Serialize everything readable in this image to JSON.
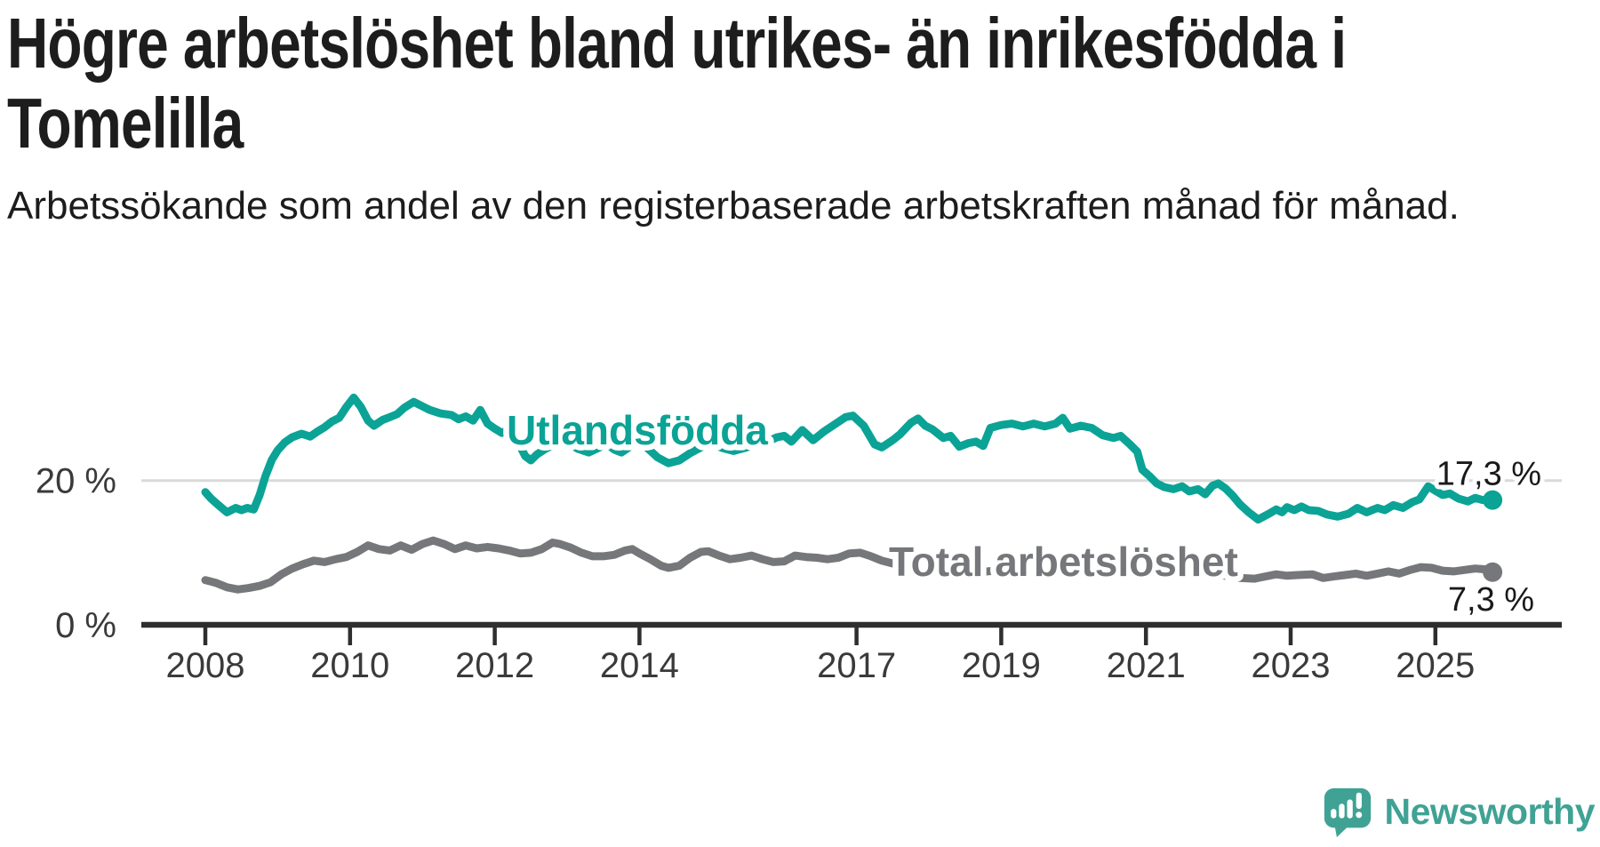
{
  "header": {
    "title_line1": "Högre arbetslöshet bland utrikes- än inrikesfödda i",
    "title_line2": "Tomelilla",
    "subtitle": "Arbetssökande som andel av den registerbaserade arbetskraften månad för månad."
  },
  "branding": {
    "logo_text": "Newsworthy",
    "logo_color": "#3fa294"
  },
  "chart_data": {
    "type": "line",
    "title": "Högre arbetslöshet bland utrikes- än inrikesfödda i Tomelilla",
    "subtitle": "Arbetssökande som andel av den registerbaserade arbetskraften månad för månad.",
    "unit": "%",
    "x_domain": [
      2008,
      2025.83
    ],
    "y_domain": [
      0,
      40
    ],
    "grid": "single horizontal gridline at 20 %",
    "legend_position": "inline-labels-on-lines",
    "background": "#ffffff",
    "gridline_color": "#d9d9d9",
    "axis_color": "#2e2e2e",
    "tick_label_color": "#3a3a3a",
    "y_ticks": [
      {
        "value": 0,
        "label": "0 %"
      },
      {
        "value": 20,
        "label": "20 %"
      }
    ],
    "x_ticks": [
      {
        "value": 2008,
        "label": "2008"
      },
      {
        "value": 2010,
        "label": "2010"
      },
      {
        "value": 2012,
        "label": "2012"
      },
      {
        "value": 2014,
        "label": "2014"
      },
      {
        "value": 2017,
        "label": "2017"
      },
      {
        "value": 2019,
        "label": "2019"
      },
      {
        "value": 2021,
        "label": "2021"
      },
      {
        "value": 2023,
        "label": "2023"
      },
      {
        "value": 2025,
        "label": "2025"
      }
    ],
    "series": [
      {
        "name": "Utlandsfödda",
        "color": "#0ba396",
        "end_label": "17,3 %",
        "end_value": 17.3,
        "inline_label": {
          "text": "Utlandsfödda",
          "x_year": 2013.97,
          "y_value": 27.1
        },
        "points": [
          [
            2008.0,
            18.4
          ],
          [
            2008.08,
            17.5
          ],
          [
            2008.17,
            16.7
          ],
          [
            2008.3,
            15.6
          ],
          [
            2008.42,
            16.2
          ],
          [
            2008.5,
            15.9
          ],
          [
            2008.58,
            16.2
          ],
          [
            2008.67,
            16.0
          ],
          [
            2008.75,
            18.0
          ],
          [
            2008.83,
            20.6
          ],
          [
            2008.92,
            22.9
          ],
          [
            2009.0,
            24.2
          ],
          [
            2009.1,
            25.3
          ],
          [
            2009.2,
            26.0
          ],
          [
            2009.33,
            26.5
          ],
          [
            2009.45,
            26.1
          ],
          [
            2009.55,
            26.8
          ],
          [
            2009.65,
            27.4
          ],
          [
            2009.75,
            28.2
          ],
          [
            2009.85,
            28.7
          ],
          [
            2009.95,
            30.2
          ],
          [
            2010.05,
            31.5
          ],
          [
            2010.15,
            30.2
          ],
          [
            2010.25,
            28.3
          ],
          [
            2010.33,
            27.6
          ],
          [
            2010.45,
            28.4
          ],
          [
            2010.55,
            28.8
          ],
          [
            2010.65,
            29.2
          ],
          [
            2010.75,
            30.1
          ],
          [
            2010.88,
            30.9
          ],
          [
            2011.0,
            30.3
          ],
          [
            2011.1,
            29.8
          ],
          [
            2011.25,
            29.3
          ],
          [
            2011.4,
            29.1
          ],
          [
            2011.5,
            28.5
          ],
          [
            2011.6,
            28.9
          ],
          [
            2011.7,
            28.3
          ],
          [
            2011.8,
            29.8
          ],
          [
            2011.9,
            27.9
          ],
          [
            2012.0,
            27.2
          ],
          [
            2012.1,
            26.6
          ],
          [
            2012.2,
            27.1
          ],
          [
            2012.3,
            25.8
          ],
          [
            2012.42,
            23.4
          ],
          [
            2012.5,
            22.8
          ],
          [
            2012.58,
            23.6
          ],
          [
            2012.7,
            24.4
          ],
          [
            2012.83,
            25.0
          ],
          [
            2012.95,
            25.5
          ],
          [
            2013.05,
            25.0
          ],
          [
            2013.15,
            24.4
          ],
          [
            2013.3,
            23.9
          ],
          [
            2013.45,
            24.6
          ],
          [
            2013.55,
            25.1
          ],
          [
            2013.65,
            24.3
          ],
          [
            2013.75,
            23.9
          ],
          [
            2013.9,
            24.9
          ],
          [
            2014.0,
            25.4
          ],
          [
            2014.1,
            24.6
          ],
          [
            2014.25,
            23.2
          ],
          [
            2014.4,
            22.4
          ],
          [
            2014.55,
            22.8
          ],
          [
            2014.7,
            23.8
          ],
          [
            2014.85,
            24.6
          ],
          [
            2015.0,
            25.1
          ],
          [
            2015.15,
            24.5
          ],
          [
            2015.3,
            24.1
          ],
          [
            2015.45,
            24.5
          ],
          [
            2015.6,
            25.0
          ],
          [
            2015.75,
            25.3
          ],
          [
            2015.9,
            26.0
          ],
          [
            2016.0,
            26.2
          ],
          [
            2016.1,
            25.4
          ],
          [
            2016.25,
            27.0
          ],
          [
            2016.4,
            25.6
          ],
          [
            2016.55,
            26.8
          ],
          [
            2016.7,
            27.8
          ],
          [
            2016.85,
            28.8
          ],
          [
            2016.95,
            29.0
          ],
          [
            2017.1,
            27.6
          ],
          [
            2017.25,
            25.0
          ],
          [
            2017.35,
            24.6
          ],
          [
            2017.5,
            25.6
          ],
          [
            2017.6,
            26.4
          ],
          [
            2017.75,
            28.0
          ],
          [
            2017.85,
            28.6
          ],
          [
            2017.95,
            27.6
          ],
          [
            2018.05,
            27.1
          ],
          [
            2018.2,
            25.9
          ],
          [
            2018.3,
            26.2
          ],
          [
            2018.42,
            24.7
          ],
          [
            2018.55,
            25.2
          ],
          [
            2018.65,
            25.4
          ],
          [
            2018.75,
            24.8
          ],
          [
            2018.85,
            27.3
          ],
          [
            2019.0,
            27.7
          ],
          [
            2019.15,
            27.9
          ],
          [
            2019.3,
            27.5
          ],
          [
            2019.45,
            27.9
          ],
          [
            2019.6,
            27.5
          ],
          [
            2019.75,
            27.9
          ],
          [
            2019.85,
            28.7
          ],
          [
            2019.95,
            27.2
          ],
          [
            2020.1,
            27.6
          ],
          [
            2020.25,
            27.3
          ],
          [
            2020.4,
            26.3
          ],
          [
            2020.55,
            25.9
          ],
          [
            2020.65,
            26.2
          ],
          [
            2020.78,
            25.0
          ],
          [
            2020.88,
            24.0
          ],
          [
            2020.95,
            21.5
          ],
          [
            2021.05,
            20.6
          ],
          [
            2021.15,
            19.6
          ],
          [
            2021.25,
            19.1
          ],
          [
            2021.38,
            18.8
          ],
          [
            2021.5,
            19.2
          ],
          [
            2021.6,
            18.5
          ],
          [
            2021.72,
            18.8
          ],
          [
            2021.82,
            18.1
          ],
          [
            2021.92,
            19.3
          ],
          [
            2022.0,
            19.6
          ],
          [
            2022.1,
            18.9
          ],
          [
            2022.2,
            17.9
          ],
          [
            2022.3,
            16.7
          ],
          [
            2022.42,
            15.6
          ],
          [
            2022.55,
            14.6
          ],
          [
            2022.7,
            15.4
          ],
          [
            2022.8,
            16.0
          ],
          [
            2022.88,
            15.6
          ],
          [
            2022.95,
            16.3
          ],
          [
            2023.05,
            15.9
          ],
          [
            2023.15,
            16.4
          ],
          [
            2023.25,
            15.9
          ],
          [
            2023.38,
            15.8
          ],
          [
            2023.5,
            15.3
          ],
          [
            2023.65,
            15.0
          ],
          [
            2023.8,
            15.4
          ],
          [
            2023.92,
            16.2
          ],
          [
            2024.05,
            15.6
          ],
          [
            2024.2,
            16.2
          ],
          [
            2024.3,
            15.9
          ],
          [
            2024.42,
            16.6
          ],
          [
            2024.55,
            16.2
          ],
          [
            2024.68,
            17.0
          ],
          [
            2024.78,
            17.4
          ],
          [
            2024.9,
            19.2
          ],
          [
            2025.0,
            18.6
          ],
          [
            2025.1,
            18.0
          ],
          [
            2025.2,
            18.2
          ],
          [
            2025.32,
            17.5
          ],
          [
            2025.45,
            17.1
          ],
          [
            2025.55,
            17.6
          ],
          [
            2025.65,
            17.3
          ],
          [
            2025.79,
            17.3
          ]
        ]
      },
      {
        "name": "Total arbetslöshet",
        "color": "#76777a",
        "end_label": "7,3 %",
        "end_value": 7.3,
        "inline_label": {
          "text": "Total arbetslöshet",
          "x_year": 2019.86,
          "y_value": 8.87
        },
        "points": [
          [
            2008.0,
            6.2
          ],
          [
            2008.15,
            5.8
          ],
          [
            2008.3,
            5.2
          ],
          [
            2008.45,
            4.9
          ],
          [
            2008.6,
            5.1
          ],
          [
            2008.75,
            5.4
          ],
          [
            2008.9,
            5.9
          ],
          [
            2009.05,
            7.0
          ],
          [
            2009.2,
            7.8
          ],
          [
            2009.35,
            8.4
          ],
          [
            2009.5,
            8.9
          ],
          [
            2009.65,
            8.7
          ],
          [
            2009.8,
            9.1
          ],
          [
            2009.95,
            9.4
          ],
          [
            2010.1,
            10.1
          ],
          [
            2010.25,
            11.0
          ],
          [
            2010.4,
            10.5
          ],
          [
            2010.55,
            10.3
          ],
          [
            2010.7,
            11.0
          ],
          [
            2010.85,
            10.4
          ],
          [
            2011.0,
            11.2
          ],
          [
            2011.15,
            11.7
          ],
          [
            2011.3,
            11.2
          ],
          [
            2011.45,
            10.5
          ],
          [
            2011.6,
            11.0
          ],
          [
            2011.75,
            10.6
          ],
          [
            2011.9,
            10.8
          ],
          [
            2012.05,
            10.6
          ],
          [
            2012.2,
            10.3
          ],
          [
            2012.35,
            9.9
          ],
          [
            2012.5,
            10.0
          ],
          [
            2012.65,
            10.5
          ],
          [
            2012.8,
            11.4
          ],
          [
            2012.9,
            11.2
          ],
          [
            2013.05,
            10.7
          ],
          [
            2013.2,
            10.0
          ],
          [
            2013.35,
            9.5
          ],
          [
            2013.5,
            9.5
          ],
          [
            2013.65,
            9.7
          ],
          [
            2013.8,
            10.3
          ],
          [
            2013.9,
            10.5
          ],
          [
            2014.0,
            9.9
          ],
          [
            2014.15,
            9.1
          ],
          [
            2014.3,
            8.2
          ],
          [
            2014.4,
            7.9
          ],
          [
            2014.55,
            8.2
          ],
          [
            2014.7,
            9.3
          ],
          [
            2014.85,
            10.1
          ],
          [
            2014.95,
            10.2
          ],
          [
            2015.1,
            9.6
          ],
          [
            2015.25,
            9.1
          ],
          [
            2015.4,
            9.3
          ],
          [
            2015.55,
            9.6
          ],
          [
            2015.7,
            9.1
          ],
          [
            2015.85,
            8.7
          ],
          [
            2016.0,
            8.8
          ],
          [
            2016.15,
            9.6
          ],
          [
            2016.3,
            9.4
          ],
          [
            2016.45,
            9.3
          ],
          [
            2016.6,
            9.1
          ],
          [
            2016.75,
            9.3
          ],
          [
            2016.9,
            9.9
          ],
          [
            2017.05,
            10.0
          ],
          [
            2017.2,
            9.5
          ],
          [
            2017.35,
            8.9
          ],
          [
            2017.5,
            8.5
          ],
          [
            2017.7,
            8.1
          ],
          [
            2017.9,
            7.9
          ],
          [
            2018.1,
            7.6
          ],
          [
            2018.3,
            7.4
          ],
          [
            2018.5,
            7.2
          ],
          [
            2018.7,
            7.3
          ],
          [
            2018.9,
            7.5
          ],
          [
            2019.1,
            7.3
          ],
          [
            2019.3,
            7.2
          ],
          [
            2019.5,
            7.4
          ],
          [
            2019.7,
            7.5
          ],
          [
            2019.9,
            7.7
          ],
          [
            2020.1,
            8.0
          ],
          [
            2020.3,
            8.8
          ],
          [
            2020.5,
            9.2
          ],
          [
            2020.7,
            9.0
          ],
          [
            2020.9,
            8.8
          ],
          [
            2021.1,
            8.5
          ],
          [
            2021.3,
            8.2
          ],
          [
            2021.5,
            7.9
          ],
          [
            2021.7,
            7.6
          ],
          [
            2021.9,
            7.2
          ],
          [
            2022.1,
            6.8
          ],
          [
            2022.3,
            6.5
          ],
          [
            2022.5,
            6.4
          ],
          [
            2022.65,
            6.7
          ],
          [
            2022.8,
            7.0
          ],
          [
            2022.95,
            6.8
          ],
          [
            2023.1,
            6.9
          ],
          [
            2023.3,
            7.0
          ],
          [
            2023.45,
            6.5
          ],
          [
            2023.6,
            6.7
          ],
          [
            2023.75,
            6.9
          ],
          [
            2023.9,
            7.1
          ],
          [
            2024.05,
            6.8
          ],
          [
            2024.2,
            7.1
          ],
          [
            2024.35,
            7.4
          ],
          [
            2024.5,
            7.1
          ],
          [
            2024.65,
            7.6
          ],
          [
            2024.8,
            8.0
          ],
          [
            2024.95,
            7.9
          ],
          [
            2025.1,
            7.5
          ],
          [
            2025.25,
            7.4
          ],
          [
            2025.4,
            7.6
          ],
          [
            2025.55,
            7.8
          ],
          [
            2025.68,
            7.7
          ],
          [
            2025.79,
            7.3
          ]
        ]
      }
    ]
  }
}
